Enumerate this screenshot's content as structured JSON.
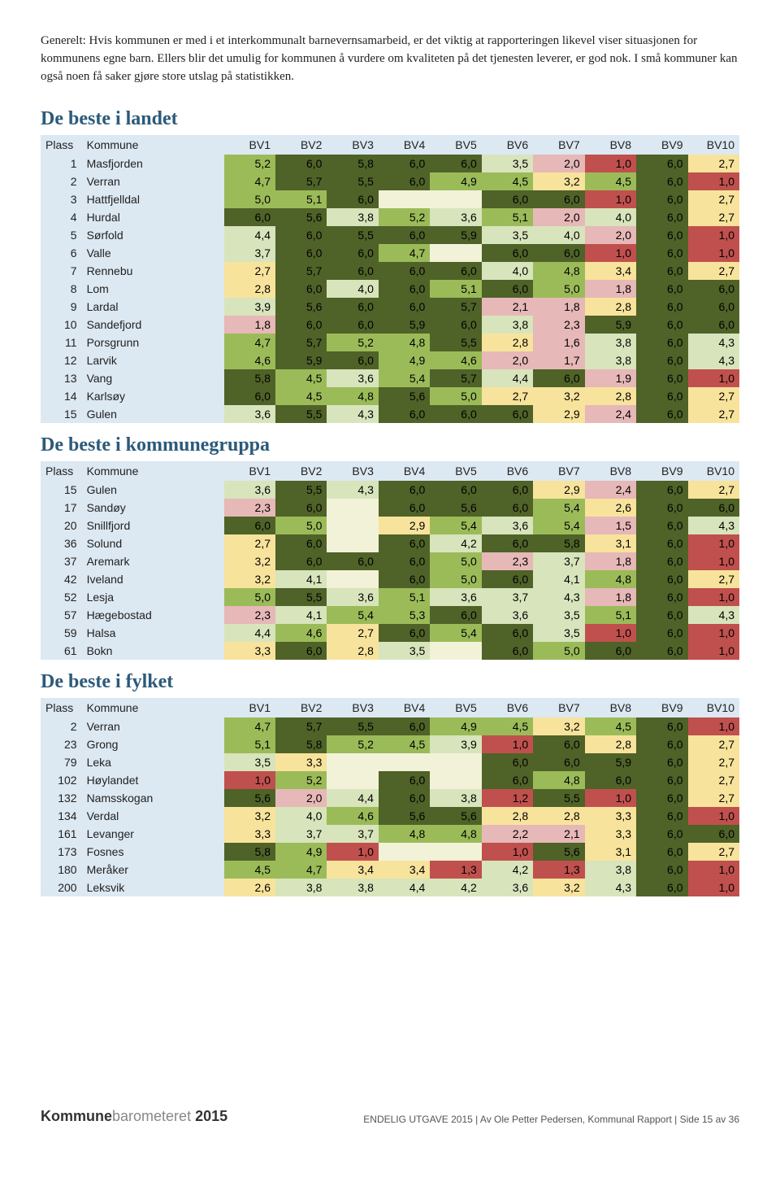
{
  "intro_text": "Generelt: Hvis kommunen er med i et interkommunalt barnevernsamarbeid, er det viktig at rapporteringen likevel viser situasjonen for kommunens egne barn. Ellers blir det umulig for kommunen å vurdere om kvaliteten på det tjenesten leverer, er god nok. I små kommuner kan også noen få saker gjøre store utslag på statistikken.",
  "section_titles": {
    "landet": "De beste i landet",
    "gruppe": "De beste i kommunegruppa",
    "fylket": "De beste i fylket"
  },
  "section_title_color": "#2b5a7a",
  "columns": [
    "Plass",
    "Kommune",
    "BV1",
    "BV2",
    "BV3",
    "BV4",
    "BV5",
    "BV6",
    "BV7",
    "BV8",
    "BV9",
    "BV10"
  ],
  "header_bg": "#dce8f2",
  "plass_bg": "#dce8f2",
  "color_scale": {
    "c1": "#c0504d",
    "c2": "#e6b8b7",
    "c3": "#f8e39c",
    "c4": "#d8e4bc",
    "c5": "#9bbb59",
    "c6": "#4f6228",
    "empty": "#f2f2d8"
  },
  "tables": {
    "landet": [
      {
        "plass": 1,
        "komm": "Masfjorden",
        "v": [
          "5,2",
          "6,0",
          "5,8",
          "6,0",
          "6,0",
          "3,5",
          "2,0",
          "1,0",
          "6,0",
          "2,7"
        ]
      },
      {
        "plass": 2,
        "komm": "Verran",
        "v": [
          "4,7",
          "5,7",
          "5,5",
          "6,0",
          "4,9",
          "4,5",
          "3,2",
          "4,5",
          "6,0",
          "1,0"
        ]
      },
      {
        "plass": 3,
        "komm": "Hattfjelldal",
        "v": [
          "5,0",
          "5,1",
          "6,0",
          "",
          "",
          "6,0",
          "6,0",
          "1,0",
          "6,0",
          "2,7"
        ]
      },
      {
        "plass": 4,
        "komm": "Hurdal",
        "v": [
          "6,0",
          "5,6",
          "3,8",
          "5,2",
          "3,6",
          "5,1",
          "2,0",
          "4,0",
          "6,0",
          "2,7"
        ]
      },
      {
        "plass": 5,
        "komm": "Sørfold",
        "v": [
          "4,4",
          "6,0",
          "5,5",
          "6,0",
          "5,9",
          "3,5",
          "4,0",
          "2,0",
          "6,0",
          "1,0"
        ]
      },
      {
        "plass": 6,
        "komm": "Valle",
        "v": [
          "3,7",
          "6,0",
          "6,0",
          "4,7",
          "",
          "6,0",
          "6,0",
          "1,0",
          "6,0",
          "1,0"
        ]
      },
      {
        "plass": 7,
        "komm": "Rennebu",
        "v": [
          "2,7",
          "5,7",
          "6,0",
          "6,0",
          "6,0",
          "4,0",
          "4,8",
          "3,4",
          "6,0",
          "2,7"
        ]
      },
      {
        "plass": 8,
        "komm": "Lom",
        "v": [
          "2,8",
          "6,0",
          "4,0",
          "6,0",
          "5,1",
          "6,0",
          "5,0",
          "1,8",
          "6,0",
          "6,0"
        ]
      },
      {
        "plass": 9,
        "komm": "Lardal",
        "v": [
          "3,9",
          "5,6",
          "6,0",
          "6,0",
          "5,7",
          "2,1",
          "1,8",
          "2,8",
          "6,0",
          "6,0"
        ]
      },
      {
        "plass": 10,
        "komm": "Sandefjord",
        "v": [
          "1,8",
          "6,0",
          "6,0",
          "5,9",
          "6,0",
          "3,8",
          "2,3",
          "5,9",
          "6,0",
          "6,0"
        ]
      },
      {
        "plass": 11,
        "komm": "Porsgrunn",
        "v": [
          "4,7",
          "5,7",
          "5,2",
          "4,8",
          "5,5",
          "2,8",
          "1,6",
          "3,8",
          "6,0",
          "4,3"
        ]
      },
      {
        "plass": 12,
        "komm": "Larvik",
        "v": [
          "4,6",
          "5,9",
          "6,0",
          "4,9",
          "4,6",
          "2,0",
          "1,7",
          "3,8",
          "6,0",
          "4,3"
        ]
      },
      {
        "plass": 13,
        "komm": "Vang",
        "v": [
          "5,8",
          "4,5",
          "3,6",
          "5,4",
          "5,7",
          "4,4",
          "6,0",
          "1,9",
          "6,0",
          "1,0"
        ]
      },
      {
        "plass": 14,
        "komm": "Karlsøy",
        "v": [
          "6,0",
          "4,5",
          "4,8",
          "5,6",
          "5,0",
          "2,7",
          "3,2",
          "2,8",
          "6,0",
          "2,7"
        ]
      },
      {
        "plass": 15,
        "komm": "Gulen",
        "v": [
          "3,6",
          "5,5",
          "4,3",
          "6,0",
          "6,0",
          "6,0",
          "2,9",
          "2,4",
          "6,0",
          "2,7"
        ]
      }
    ],
    "gruppe": [
      {
        "plass": 15,
        "komm": "Gulen",
        "v": [
          "3,6",
          "5,5",
          "4,3",
          "6,0",
          "6,0",
          "6,0",
          "2,9",
          "2,4",
          "6,0",
          "2,7"
        ]
      },
      {
        "plass": 17,
        "komm": "Sandøy",
        "v": [
          "2,3",
          "6,0",
          "",
          "6,0",
          "5,6",
          "6,0",
          "5,4",
          "2,6",
          "6,0",
          "6,0"
        ]
      },
      {
        "plass": 20,
        "komm": "Snillfjord",
        "v": [
          "6,0",
          "5,0",
          "",
          "2,9",
          "5,4",
          "3,6",
          "5,4",
          "1,5",
          "6,0",
          "4,3"
        ]
      },
      {
        "plass": 36,
        "komm": "Solund",
        "v": [
          "2,7",
          "6,0",
          "",
          "6,0",
          "4,2",
          "6,0",
          "5,8",
          "3,1",
          "6,0",
          "1,0"
        ]
      },
      {
        "plass": 37,
        "komm": "Aremark",
        "v": [
          "3,2",
          "6,0",
          "6,0",
          "6,0",
          "5,0",
          "2,3",
          "3,7",
          "1,8",
          "6,0",
          "1,0"
        ]
      },
      {
        "plass": 42,
        "komm": "Iveland",
        "v": [
          "3,2",
          "4,1",
          "",
          "6,0",
          "5,0",
          "6,0",
          "4,1",
          "4,8",
          "6,0",
          "2,7"
        ]
      },
      {
        "plass": 52,
        "komm": "Lesja",
        "v": [
          "5,0",
          "5,5",
          "3,6",
          "5,1",
          "3,6",
          "3,7",
          "4,3",
          "1,8",
          "6,0",
          "1,0"
        ]
      },
      {
        "plass": 57,
        "komm": "Hægebostad",
        "v": [
          "2,3",
          "4,1",
          "5,4",
          "5,3",
          "6,0",
          "3,6",
          "3,5",
          "5,1",
          "6,0",
          "4,3"
        ]
      },
      {
        "plass": 59,
        "komm": "Halsa",
        "v": [
          "4,4",
          "4,6",
          "2,7",
          "6,0",
          "5,4",
          "6,0",
          "3,5",
          "1,0",
          "6,0",
          "1,0"
        ]
      },
      {
        "plass": 61,
        "komm": "Bokn",
        "v": [
          "3,3",
          "6,0",
          "2,8",
          "3,5",
          "",
          "6,0",
          "5,0",
          "6,0",
          "6,0",
          "1,0"
        ]
      }
    ],
    "fylket": [
      {
        "plass": 2,
        "komm": "Verran",
        "v": [
          "4,7",
          "5,7",
          "5,5",
          "6,0",
          "4,9",
          "4,5",
          "3,2",
          "4,5",
          "6,0",
          "1,0"
        ]
      },
      {
        "plass": 23,
        "komm": "Grong",
        "v": [
          "5,1",
          "5,8",
          "5,2",
          "4,5",
          "3,9",
          "1,0",
          "6,0",
          "2,8",
          "6,0",
          "2,7"
        ]
      },
      {
        "plass": 79,
        "komm": "Leka",
        "v": [
          "3,5",
          "3,3",
          "",
          "",
          "",
          "6,0",
          "6,0",
          "5,9",
          "6,0",
          "2,7"
        ]
      },
      {
        "plass": 102,
        "komm": "Høylandet",
        "v": [
          "1,0",
          "5,2",
          "",
          "6,0",
          "",
          "6,0",
          "4,8",
          "6,0",
          "6,0",
          "2,7"
        ]
      },
      {
        "plass": 132,
        "komm": "Namsskogan",
        "v": [
          "5,6",
          "2,0",
          "4,4",
          "6,0",
          "3,8",
          "1,2",
          "5,5",
          "1,0",
          "6,0",
          "2,7"
        ]
      },
      {
        "plass": 134,
        "komm": "Verdal",
        "v": [
          "3,2",
          "4,0",
          "4,6",
          "5,6",
          "5,6",
          "2,8",
          "2,8",
          "3,3",
          "6,0",
          "1,0"
        ]
      },
      {
        "plass": 161,
        "komm": "Levanger",
        "v": [
          "3,3",
          "3,7",
          "3,7",
          "4,8",
          "4,8",
          "2,2",
          "2,1",
          "3,3",
          "6,0",
          "6,0"
        ]
      },
      {
        "plass": 173,
        "komm": "Fosnes",
        "v": [
          "5,8",
          "4,9",
          "1,0",
          "",
          "",
          "1,0",
          "5,6",
          "3,1",
          "6,0",
          "2,7"
        ]
      },
      {
        "plass": 180,
        "komm": "Meråker",
        "v": [
          "4,5",
          "4,7",
          "3,4",
          "3,4",
          "1,3",
          "4,2",
          "1,3",
          "3,8",
          "6,0",
          "1,0"
        ]
      },
      {
        "plass": 200,
        "komm": "Leksvik",
        "v": [
          "2,6",
          "3,8",
          "3,8",
          "4,4",
          "4,2",
          "3,6",
          "3,2",
          "4,3",
          "6,0",
          "1,0"
        ]
      }
    ]
  },
  "footer": {
    "brand_bold": "Kommune",
    "brand_light": "barometeret ",
    "brand_year": "2015",
    "right": "ENDELIG UTGAVE 2015 | Av Ole Petter Pedersen, Kommunal Rapport | Side 15 av 36"
  }
}
